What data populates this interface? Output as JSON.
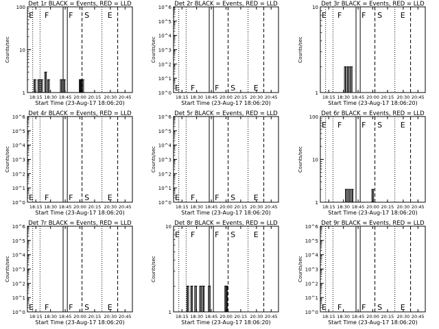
{
  "chart_data": [
    {
      "type": "bar",
      "title": "Det 1r BLACK = Events, RED = LLD",
      "xlabel": "Start Time (23-Aug-17 18:06:20)",
      "ylabel": "Counts/sec",
      "yscale": "log",
      "ylim": [
        1,
        100
      ],
      "yticks": [
        "1",
        "10",
        "100"
      ],
      "xticks": [
        "18:15",
        "18:30",
        "18:45",
        "20:00",
        "20:15",
        "20:30",
        "20:45"
      ],
      "markers": [
        "E",
        "F",
        "F",
        "S",
        "E"
      ],
      "events": [
        {
          "t": "18:13",
          "counts": 2
        },
        {
          "t": "18:17",
          "counts": 2
        },
        {
          "t": "18:20",
          "counts": 2
        },
        {
          "t": "18:24",
          "counts": 3
        },
        {
          "t": "18:27",
          "counts": 2
        },
        {
          "t": "18:40",
          "counts": 2
        },
        {
          "t": "18:43",
          "counts": 2
        },
        {
          "t": "19:57",
          "counts": 2
        },
        {
          "t": "20:00",
          "counts": 2
        },
        {
          "t": "20:02",
          "counts": 2
        }
      ]
    },
    {
      "type": "bar",
      "title": "Det 2r BLACK = Events, RED = LLD",
      "xlabel": "Start Time (23-Aug-17 18:06:20)",
      "ylabel": "Counts/sec",
      "yscale": "log",
      "ylim": [
        1,
        1000000
      ],
      "yticks": [
        "10^0",
        "10^1",
        "10^2",
        "10^3",
        "10^4",
        "10^5",
        "10^6"
      ],
      "xticks": [
        "18:15",
        "18:30",
        "18:45",
        "20:00",
        "20:15",
        "20:30",
        "20:45"
      ],
      "markers": [
        "E",
        "F",
        "F",
        "S",
        "E"
      ],
      "events": []
    },
    {
      "type": "bar",
      "title": "Det 3r BLACK = Events, RED = LLD",
      "xlabel": "Start Time (23-Aug-17 18:06:20)",
      "ylabel": "Counts/sec",
      "yscale": "log",
      "ylim": [
        1,
        10
      ],
      "yticks": [
        "1",
        "10"
      ],
      "xticks": [
        "18:15",
        "18:30",
        "18:45",
        "20:00",
        "20:15",
        "20:30",
        "20:45"
      ],
      "markers": [
        "E",
        "F",
        "F",
        "S",
        "E"
      ],
      "events": [
        {
          "t": "18:31",
          "counts": 2
        },
        {
          "t": "18:34",
          "counts": 2
        },
        {
          "t": "18:37",
          "counts": 2
        }
      ]
    },
    {
      "type": "bar",
      "title": "Det 4r BLACK = Events, RED = LLD",
      "xlabel": "Start Time (23-Aug-17 18:06:20)",
      "ylabel": "Counts/sec",
      "yscale": "log",
      "ylim": [
        1,
        1000000
      ],
      "yticks": [
        "10^0",
        "10^1",
        "10^2",
        "10^3",
        "10^4",
        "10^5",
        "10^6"
      ],
      "xticks": [
        "18:15",
        "18:30",
        "18:45",
        "20:00",
        "20:15",
        "20:30",
        "20:45"
      ],
      "markers": [
        "E",
        "F",
        "F",
        "S",
        "E"
      ],
      "events": []
    },
    {
      "type": "bar",
      "title": "Det 5r BLACK = Events, RED = LLD",
      "xlabel": "Start Time (23-Aug-17 18:06:20)",
      "ylabel": "Counts/sec",
      "yscale": "log",
      "ylim": [
        1,
        1000000
      ],
      "yticks": [
        "10^0",
        "10^1",
        "10^2",
        "10^3",
        "10^4",
        "10^5",
        "10^6"
      ],
      "xticks": [
        "18:15",
        "18:30",
        "18:45",
        "20:00",
        "20:15",
        "20:30",
        "20:45"
      ],
      "markers": [
        "E",
        "F",
        "F",
        "S",
        "E"
      ],
      "events": []
    },
    {
      "type": "bar",
      "title": "Det 6r BLACK = Events, RED = LLD",
      "xlabel": "Start Time (23-Aug-17 18:06:20)",
      "ylabel": "Counts/sec",
      "yscale": "log",
      "ylim": [
        1,
        100
      ],
      "yticks": [
        "1",
        "10",
        "100"
      ],
      "xticks": [
        "18:15",
        "18:30",
        "18:45",
        "20:00",
        "20:15",
        "20:30",
        "20:45"
      ],
      "markers": [
        "E",
        "F",
        "F",
        "S",
        "E"
      ],
      "events": [
        {
          "t": "18:32",
          "counts": 2
        },
        {
          "t": "18:35",
          "counts": 2
        },
        {
          "t": "18:38",
          "counts": 2
        },
        {
          "t": "19:55",
          "counts": 2
        }
      ]
    },
    {
      "type": "bar",
      "title": "Det 7r BLACK = Events, RED = LLD",
      "xlabel": "Start Time (23-Aug-17 18:06:20)",
      "ylabel": "Counts/sec",
      "yscale": "log",
      "ylim": [
        1,
        1000000
      ],
      "yticks": [
        "10^0",
        "10^1",
        "10^2",
        "10^3",
        "10^4",
        "10^5",
        "10^6"
      ],
      "xticks": [
        "18:15",
        "18:30",
        "18:45",
        "20:00",
        "20:15",
        "20:30",
        "20:45"
      ],
      "markers": [
        "E",
        "F",
        "F",
        "S",
        "E"
      ],
      "events": []
    },
    {
      "type": "bar",
      "title": "Det 8r BLACK = Events, RED = LLD",
      "xlabel": "Start Time (23-Aug-17 18:06:20)",
      "ylabel": "Counts/sec",
      "yscale": "log",
      "ylim": [
        1,
        10
      ],
      "yticks": [
        "1",
        "10"
      ],
      "xticks": [
        "18:15",
        "18:30",
        "18:45",
        "20:00",
        "20:15",
        "20:30",
        "20:45"
      ],
      "markers": [
        "E",
        "F",
        "F",
        "S",
        "E"
      ],
      "events": [
        {
          "t": "18:20",
          "counts": 2
        },
        {
          "t": "18:24",
          "counts": 2
        },
        {
          "t": "18:28",
          "counts": 2
        },
        {
          "t": "18:33",
          "counts": 2
        },
        {
          "t": "18:36",
          "counts": 2
        },
        {
          "t": "18:42",
          "counts": 2
        },
        {
          "t": "19:54",
          "counts": 2
        },
        {
          "t": "19:58",
          "counts": 2
        }
      ]
    },
    {
      "type": "bar",
      "title": "Det 9r BLACK = Events, RED = LLD",
      "xlabel": "Start Time (23-Aug-17 18:06:20)",
      "ylabel": "Counts/sec",
      "yscale": "log",
      "ylim": [
        1,
        1000000
      ],
      "yticks": [
        "10^0",
        "10^1",
        "10^2",
        "10^3",
        "10^4",
        "10^5",
        "10^6"
      ],
      "xticks": [
        "18:15",
        "18:30",
        "18:45",
        "20:00",
        "20:15",
        "20:30",
        "20:45"
      ],
      "markers": [
        "E",
        "F",
        "F",
        "S",
        "E"
      ],
      "events": []
    }
  ]
}
